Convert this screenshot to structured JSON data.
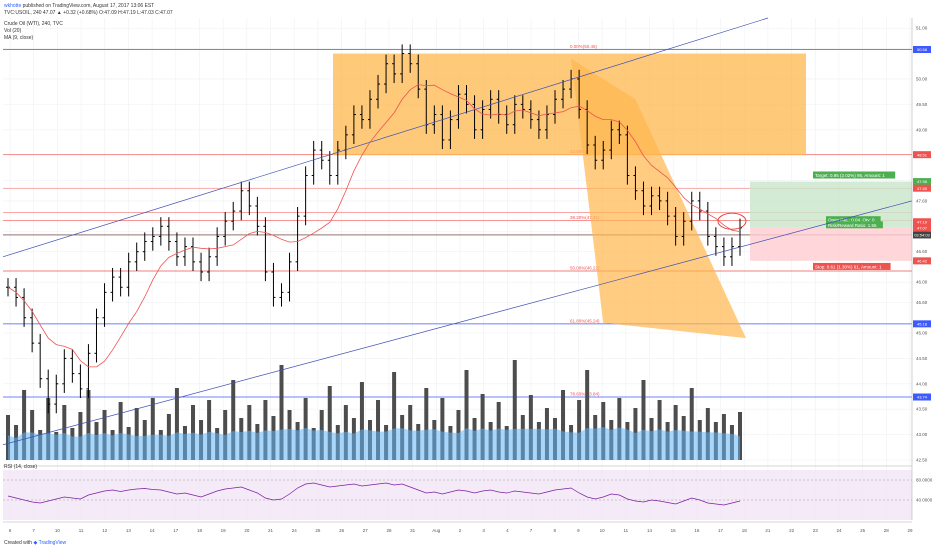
{
  "header": {
    "author": "wkhotte",
    "published": "published on TradingView.com, August 17, 2017 13:06 EST",
    "symbol_line": "TVC:USOIL, 240  47.07  ▲ +0.32 (+0.68%)  O:47.09  H:47.19  L:47.03  C:47.07",
    "study1": "Crude Oil (WTI), 240, TVC",
    "study2": "Vol (20)",
    "study3": "MA (9, close)",
    "rsi_label": "RSI (14, close)"
  },
  "footer": {
    "created_with": "Created with",
    "brand": "TradingView"
  },
  "annotations": {
    "fib_0": "0.00%(50.46)",
    "fib_236": "23.60%(48.43)",
    "fib_382": "38.20%(47.21)",
    "fib_50": "50.00%(46.22)",
    "fib_618": "61.80%(45.24)",
    "fib_786": "78.60%(43.84)",
    "target": "Target: 0.95 (2.02%) 95, Amount: 1",
    "open_pnl": "Open P&L: 0.04, Qty: 0",
    "risk_reward": "Risk/Reward Ratio: 1.56",
    "stop": "Stop: 0.61 (1.30%) 61, Amount: 1"
  },
  "price_axis": {
    "ticks": [
      "51.00",
      "50.60",
      "50.00",
      "49.50",
      "49.00",
      "48.50",
      "48.00",
      "47.60",
      "47.00",
      "46.60",
      "46.00",
      "45.60",
      "45.00",
      "44.50",
      "44.00",
      "43.50",
      "43.00",
      "42.50"
    ],
    "badges": [
      {
        "text": "50.58",
        "color": "#3d5afe",
        "price": 50.58
      },
      {
        "text": "48.51",
        "color": "#ef5350",
        "price": 48.51
      },
      {
        "text": "47.98",
        "color": "#4caf50",
        "price": 47.98
      },
      {
        "text": "47.85",
        "color": "#ef5350",
        "price": 47.85
      },
      {
        "text": "47.19",
        "color": "#ef5350",
        "price": 47.19
      },
      {
        "text": "47.07",
        "color": "#ef5350",
        "price": 47.07
      },
      {
        "text": "03:54:03",
        "color": "#424242",
        "price": 46.93
      },
      {
        "text": "46.42",
        "color": "#ef5350",
        "price": 46.42
      },
      {
        "text": "45.18",
        "color": "#3d5afe",
        "price": 45.18
      },
      {
        "text": "43.74",
        "color": "#3d5afe",
        "price": 43.74
      }
    ]
  },
  "rsi_axis": {
    "ticks": [
      "80.0000",
      "40.0000"
    ]
  },
  "time_axis": {
    "ticks": [
      "6",
      "7",
      "10",
      "11",
      "12",
      "13",
      "14",
      "17",
      "18",
      "19",
      "20",
      "21",
      "24",
      "25",
      "26",
      "27",
      "28",
      "31",
      "Aug",
      "2",
      "3",
      "4",
      "7",
      "8",
      "9",
      "10",
      "11",
      "14",
      "15",
      "16",
      "17",
      "18",
      "21",
      "22",
      "23",
      "24",
      "25",
      "28",
      "29"
    ]
  },
  "colors": {
    "up_bar": "#000000",
    "ma_line": "#ef5350",
    "volume": "#4d4d4d",
    "volume_ma": "#64b5f6",
    "fib_box": "#ffb74d",
    "target_zone": "#c8e6c9",
    "stop_zone": "#ffcdd2",
    "rsi_bg": "#f3e5f5",
    "rsi_line": "#7b1fa2",
    "trendline": "#3f51b5"
  },
  "chart_data": {
    "type": "line",
    "title": "Crude Oil (WTI), 240, TVC",
    "xlabel": "",
    "ylabel": "",
    "ylim": [
      42.5,
      51.2
    ],
    "grid": true,
    "series": [
      {
        "name": "Crude Oil (WTI)",
        "values": [
          45.9,
          45.7,
          45.3,
          44.8,
          44.1,
          43.6,
          44.0,
          44.5,
          44.2,
          43.9,
          44.6,
          45.3,
          45.8,
          46.1,
          45.9,
          46.4,
          46.6,
          46.8,
          46.9,
          47.1,
          46.8,
          46.5,
          46.7,
          46.4,
          46.2,
          46.5,
          46.9,
          47.2,
          47.4,
          47.8,
          47.5,
          47.1,
          46.2,
          45.7,
          45.8,
          46.4,
          47.3,
          48.1,
          48.6,
          48.4,
          48.1,
          48.6,
          48.9,
          49.3,
          49.2,
          49.6,
          49.9,
          50.3,
          50.1,
          50.5,
          50.3,
          49.8,
          49.1,
          49.3,
          48.8,
          49.2,
          49.7,
          49.5,
          49.0,
          49.4,
          49.6,
          49.3,
          49.1,
          49.5,
          49.4,
          49.2,
          49.0,
          49.3,
          49.6,
          49.8,
          50.0,
          49.4,
          48.7,
          48.4,
          48.6,
          49.0,
          48.9,
          48.1,
          47.8,
          47.5,
          47.7,
          47.6,
          47.3,
          46.9,
          47.2,
          47.6,
          47.4,
          46.9,
          46.7,
          46.5,
          46.7,
          47.07
        ]
      }
    ],
    "volume": [
      0.45,
      0.35,
      0.7,
      0.5,
      0.3,
      0.62,
      0.28,
      0.55,
      0.32,
      0.48,
      0.7,
      0.38,
      0.5,
      0.3,
      0.58,
      0.33,
      0.52,
      0.4,
      0.62,
      0.3,
      0.46,
      0.72,
      0.34,
      0.55,
      0.4,
      0.6,
      0.32,
      0.5,
      0.8,
      0.42,
      0.55,
      0.36,
      0.6,
      0.44,
      0.95,
      0.5,
      0.38,
      0.62,
      0.32,
      0.5,
      0.74,
      0.35,
      0.55,
      0.42,
      0.78,
      0.4,
      0.6,
      0.35,
      0.88,
      0.45,
      0.55,
      0.36,
      0.72,
      0.4,
      0.62,
      0.34,
      0.5,
      0.9,
      0.42,
      0.66,
      0.38,
      0.58,
      0.34,
      1.0,
      0.45,
      0.65,
      0.38,
      0.52,
      0.42,
      0.7,
      0.35,
      0.6,
      0.9,
      0.45,
      0.58,
      0.4,
      0.62,
      0.38,
      0.52,
      0.8,
      0.42,
      0.6,
      0.38,
      0.55,
      0.44,
      0.72,
      0.4,
      0.52,
      0.38,
      0.46,
      0.35,
      0.48
    ],
    "rsi": [
      48,
      44,
      40,
      36,
      34,
      38,
      42,
      46,
      44,
      42,
      50,
      54,
      58,
      60,
      57,
      60,
      62,
      63,
      61,
      60,
      56,
      52,
      54,
      50,
      46,
      52,
      58,
      62,
      64,
      66,
      60,
      54,
      44,
      40,
      42,
      52,
      64,
      72,
      74,
      70,
      66,
      68,
      70,
      72,
      68,
      70,
      72,
      74,
      70,
      72,
      66,
      60,
      54,
      56,
      52,
      56,
      60,
      58,
      54,
      58,
      60,
      56,
      54,
      58,
      56,
      54,
      52,
      56,
      60,
      62,
      64,
      54,
      46,
      42,
      46,
      52,
      50,
      42,
      38,
      36,
      40,
      38,
      35,
      32,
      38,
      44,
      40,
      34,
      32,
      30,
      34,
      38
    ]
  }
}
